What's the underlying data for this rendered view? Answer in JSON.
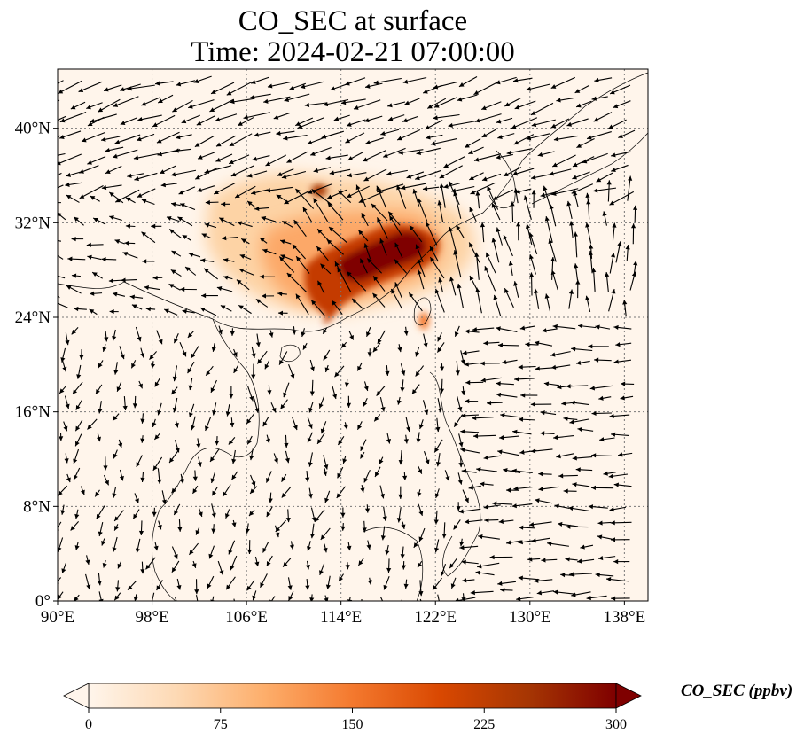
{
  "title_line1": "CO_SEC at surface",
  "title_line2": "Time: 2024-02-21 07:00:00",
  "map": {
    "extent": {
      "lon_min": 90,
      "lon_max": 140,
      "lat_min": 0,
      "lat_max": 45
    },
    "x_ticks": [
      {
        "lon": 90,
        "label": "90°E"
      },
      {
        "lon": 98,
        "label": "98°E"
      },
      {
        "lon": 106,
        "label": "106°E"
      },
      {
        "lon": 114,
        "label": "114°E"
      },
      {
        "lon": 122,
        "label": "122°E"
      },
      {
        "lon": 130,
        "label": "130°E"
      },
      {
        "lon": 138,
        "label": "138°E"
      }
    ],
    "y_ticks": [
      {
        "lat": 0,
        "label": "0°"
      },
      {
        "lat": 8,
        "label": "8°N"
      },
      {
        "lat": 16,
        "label": "16°N"
      },
      {
        "lat": 24,
        "label": "24°N"
      },
      {
        "lat": 32,
        "label": "32°N"
      },
      {
        "lat": 40,
        "label": "40°N"
      }
    ],
    "gridlines": true,
    "background_color": "#fff5eb",
    "vector_color": "#000000"
  },
  "colorbar": {
    "label": "CO_SEC (ppbv)",
    "ticks": [
      0,
      75,
      150,
      225,
      300
    ],
    "extend": "both",
    "colors": [
      "#fff5eb",
      "#fdd9b4",
      "#fdae6b",
      "#f4792e",
      "#d94801",
      "#a63603",
      "#7f0000"
    ]
  }
}
